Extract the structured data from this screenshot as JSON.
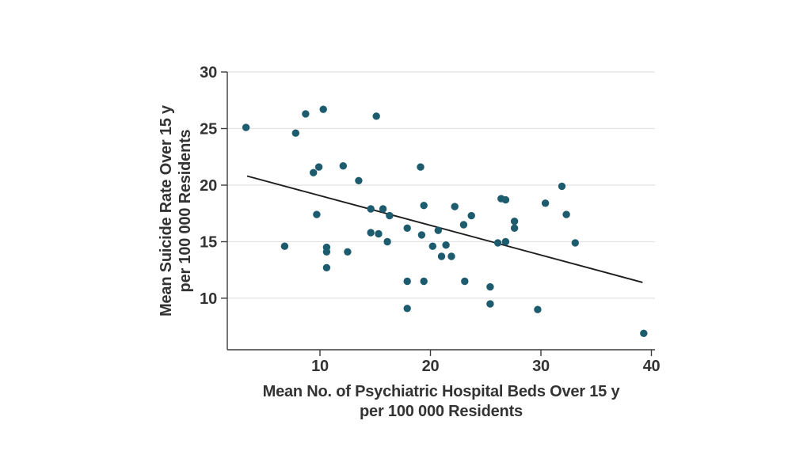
{
  "figure": {
    "description": "Scatter plot of mean suicide rate versus mean number of psychiatric hospital beds with a fitted declining regression line"
  },
  "chart_data": {
    "type": "scatter",
    "title": "",
    "xlabel_lines": [
      "Mean No. of Psychiatric Hospital Beds Over 15 y",
      "per 100 000 Residents"
    ],
    "ylabel_lines": [
      "Mean Suicide Rate Over 15 y",
      "per 100 000 Residents"
    ],
    "xlim": [
      1.61,
      40.32
    ],
    "ylim": [
      5.45,
      30
    ],
    "xticks": [
      10,
      20,
      30,
      40
    ],
    "yticks": [
      10,
      15,
      20,
      25,
      30
    ],
    "grid": "horizontal-only",
    "legend_position": "none",
    "colors": {
      "point": "#1d5b6e",
      "trend": "#1d1d1d",
      "grid": "#e2e2e2",
      "axis": "#3c3c3c",
      "text": "#333333"
    },
    "trend_line": {
      "x1": 3.4,
      "y1": 20.8,
      "x2": 39.2,
      "y2": 11.4
    },
    "points": [
      [
        3.3,
        25.1
      ],
      [
        7.8,
        24.6
      ],
      [
        8.7,
        26.3
      ],
      [
        10.3,
        26.7
      ],
      [
        15.1,
        26.1
      ],
      [
        9.4,
        21.1
      ],
      [
        9.9,
        21.6
      ],
      [
        12.1,
        21.7
      ],
      [
        13.5,
        20.4
      ],
      [
        19.1,
        21.6
      ],
      [
        9.7,
        17.4
      ],
      [
        14.6,
        17.9
      ],
      [
        15.7,
        17.9
      ],
      [
        16.3,
        17.3
      ],
      [
        19.4,
        18.2
      ],
      [
        22.2,
        18.1
      ],
      [
        23.7,
        17.3
      ],
      [
        23.0,
        16.5
      ],
      [
        27.6,
        16.8
      ],
      [
        27.6,
        16.2
      ],
      [
        26.4,
        18.8
      ],
      [
        26.8,
        18.7
      ],
      [
        30.4,
        18.4
      ],
      [
        31.9,
        19.9
      ],
      [
        32.3,
        17.4
      ],
      [
        17.9,
        16.2
      ],
      [
        19.2,
        15.6
      ],
      [
        20.7,
        16.0
      ],
      [
        14.6,
        15.8
      ],
      [
        15.3,
        15.7
      ],
      [
        16.1,
        15.0
      ],
      [
        26.1,
        14.9
      ],
      [
        26.8,
        15.0
      ],
      [
        33.1,
        14.9
      ],
      [
        6.8,
        14.6
      ],
      [
        10.6,
        14.5
      ],
      [
        10.6,
        14.1
      ],
      [
        12.5,
        14.1
      ],
      [
        20.2,
        14.6
      ],
      [
        21.4,
        14.7
      ],
      [
        21.0,
        13.7
      ],
      [
        21.9,
        13.7
      ],
      [
        10.6,
        12.7
      ],
      [
        17.9,
        11.5
      ],
      [
        19.4,
        11.5
      ],
      [
        23.1,
        11.5
      ],
      [
        25.4,
        11.0
      ],
      [
        25.4,
        9.5
      ],
      [
        17.9,
        9.1
      ],
      [
        29.7,
        9.0
      ],
      [
        39.3,
        6.9
      ]
    ]
  }
}
